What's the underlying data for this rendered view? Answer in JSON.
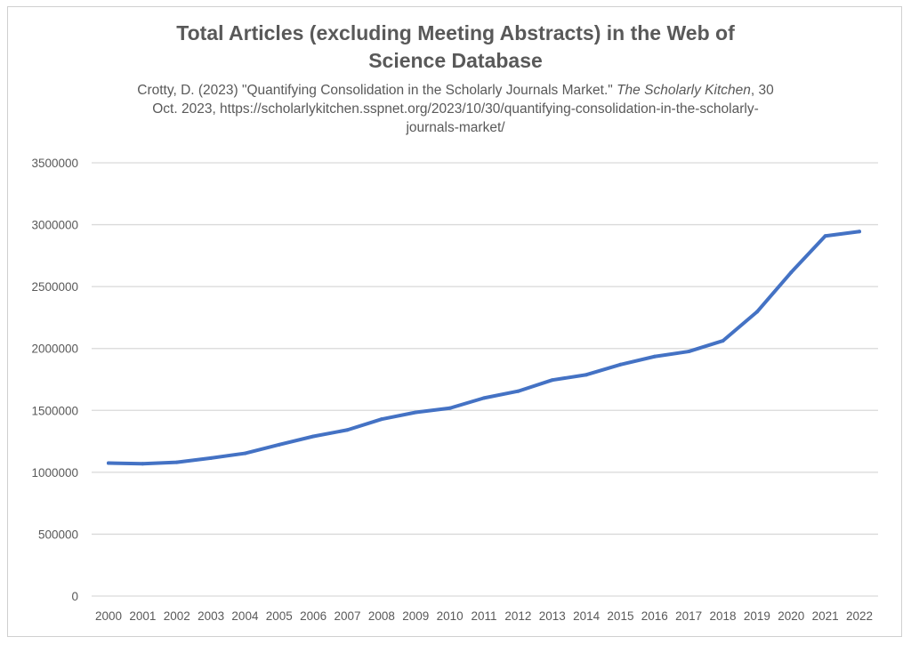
{
  "chart_data": {
    "type": "line",
    "title": "Total Articles (excluding Meeting Abstracts) in the Web of Science Database",
    "subtitle": {
      "part1": "Crotty, D. (2023) \"Quantifying Consolidation in the Scholarly Journals Market.\" ",
      "italic": "The Scholarly Kitchen",
      "part2": ", 30 Oct. 2023, https://scholarlykitchen.sspnet.org/2023/10/30/quantifying-consolidation-in-the-scholarly-journals-market/"
    },
    "xlabel": "",
    "ylabel": "",
    "ylim": [
      0,
      3500000
    ],
    "yticks": [
      "0",
      "500000",
      "1000000",
      "1500000",
      "2000000",
      "2500000",
      "3000000",
      "3500000"
    ],
    "grid": true,
    "legend": "none",
    "line_color": "#4472C4",
    "categories": [
      "2000",
      "2001",
      "2002",
      "2003",
      "2004",
      "2005",
      "2006",
      "2007",
      "2008",
      "2009",
      "2010",
      "2011",
      "2012",
      "2013",
      "2014",
      "2015",
      "2016",
      "2017",
      "2018",
      "2019",
      "2020",
      "2021",
      "2022"
    ],
    "values": [
      1074000,
      1069000,
      1081000,
      1115000,
      1153000,
      1223000,
      1290000,
      1342000,
      1429000,
      1484000,
      1518000,
      1600000,
      1655000,
      1745000,
      1788000,
      1870000,
      1935000,
      1976000,
      2062000,
      2296000,
      2615000,
      2909000,
      2945000
    ]
  }
}
